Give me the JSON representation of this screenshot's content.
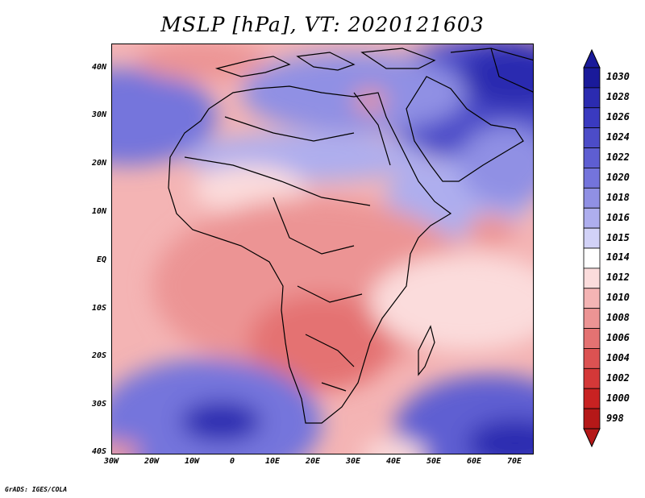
{
  "title": "MSLP [hPa], VT: 2020121603",
  "credit": "GrADS: IGES/COLA",
  "lat_labels": [
    "40N",
    "30N",
    "20N",
    "10N",
    "EQ",
    "10S",
    "20S",
    "30S",
    "40S"
  ],
  "lon_labels": [
    "30W",
    "20W",
    "10W",
    "0",
    "10E",
    "20E",
    "30E",
    "40E",
    "50E",
    "60E",
    "70E"
  ],
  "legend": {
    "labels": [
      "1030",
      "1028",
      "1026",
      "1024",
      "1022",
      "1020",
      "1018",
      "1016",
      "1015",
      "1014",
      "1012",
      "1010",
      "1008",
      "1006",
      "1004",
      "1002",
      "1000",
      "998"
    ],
    "colors": [
      "#1a1a9a",
      "#2b2bb0",
      "#3a3ac0",
      "#4c4cc8",
      "#5e5ed2",
      "#7474dc",
      "#9090e4",
      "#aeaeee",
      "#d2d2f7",
      "#ffffff",
      "#fbdcdc",
      "#f4b4b4",
      "#ec9494",
      "#e47272",
      "#dc5252",
      "#d43838",
      "#c82222",
      "#b51818"
    ]
  },
  "colors": {
    "land_outline": "#000000"
  }
}
